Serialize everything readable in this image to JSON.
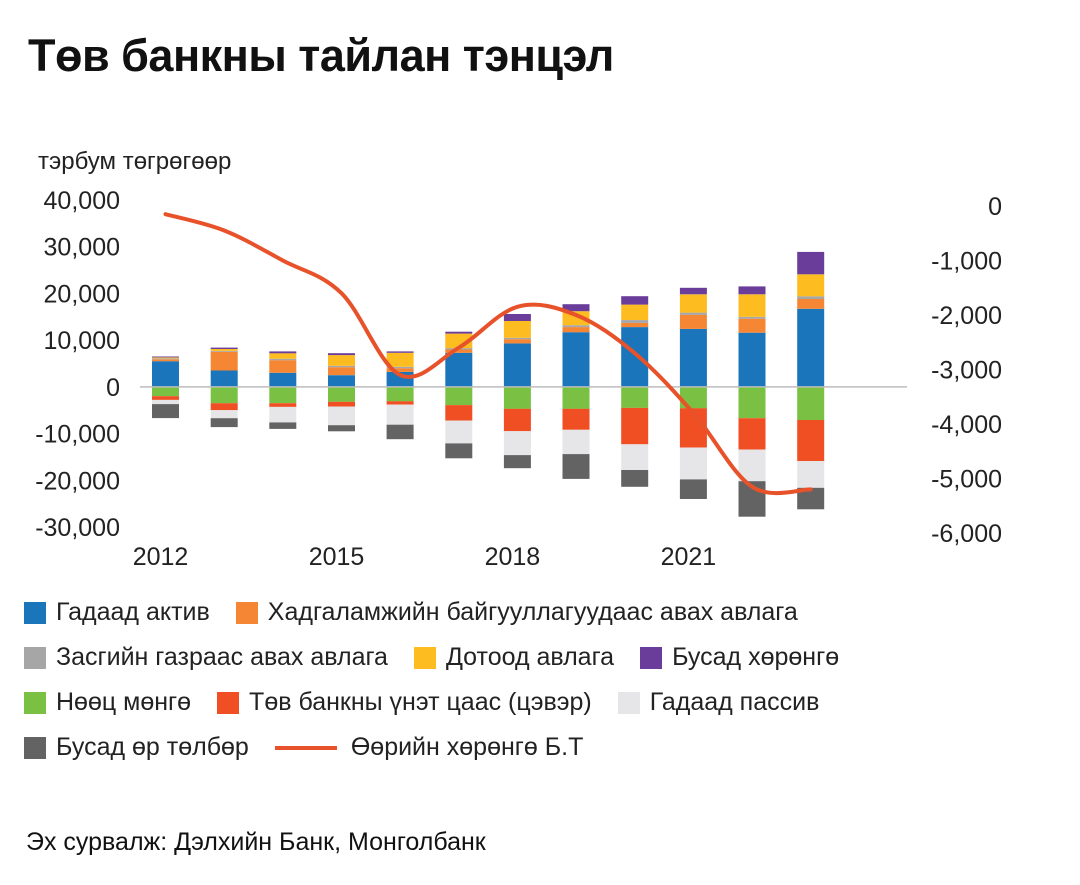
{
  "title": "Төв банкны тайлан тэнцэл",
  "unit_label": "тэрбум төгрөгөөр",
  "source": "Эх сурвалж: Дэлхийн Банк, Монголбанк",
  "chart_data": {
    "type": "bar",
    "stacked": true,
    "categories": [
      "2012",
      "2013",
      "2014",
      "2015",
      "2016",
      "2017",
      "2018",
      "2019",
      "2020",
      "2021",
      "2022",
      "2023"
    ],
    "x_tick_labels": [
      "2012",
      "2015",
      "2018",
      "2021"
    ],
    "y_left": {
      "min": -30000,
      "max": 40000,
      "ticks": [
        40000,
        30000,
        20000,
        10000,
        0,
        -10000,
        -20000,
        -30000
      ],
      "tick_labels": [
        "40,000",
        "30,000",
        "20,000",
        "10,000",
        "0",
        "-10,000",
        "-20,000",
        "-30,000"
      ]
    },
    "y_right": {
      "min": -6000,
      "max": 0,
      "ticks": [
        0,
        -1000,
        -2000,
        -3000,
        -4000,
        -5000,
        -6000
      ],
      "tick_labels": [
        "0",
        "-1,000",
        "-2,000",
        "-3,000",
        "-4,000",
        "-5,000",
        "-6,000"
      ]
    },
    "grid": false,
    "legend_position": "bottom",
    "series": [
      {
        "name": "Гадаад актив",
        "color": "#1b75bb",
        "axis": "left",
        "values": [
          5500,
          3500,
          3000,
          2500,
          3200,
          7300,
          9300,
          11700,
          12800,
          12400,
          11600,
          16700
        ]
      },
      {
        "name": "Хадгаламжийн байгууллагуудаас авах авлага",
        "color": "#f58634",
        "axis": "left",
        "values": [
          400,
          4000,
          2700,
          1700,
          800,
          700,
          900,
          1100,
          900,
          3000,
          3000,
          2100
        ]
      },
      {
        "name": "Засгийн газраас авах авлага",
        "color": "#a6a6a6",
        "axis": "left",
        "values": [
          200,
          200,
          300,
          300,
          300,
          300,
          300,
          400,
          600,
          500,
          400,
          600
        ]
      },
      {
        "name": "Дотоод авлага",
        "color": "#fdbc20",
        "axis": "left",
        "values": [
          200,
          400,
          1200,
          2300,
          3000,
          3100,
          3600,
          3000,
          3300,
          3900,
          4800,
          4700
        ]
      },
      {
        "name": "Бусад хөрөнгө",
        "color": "#6a3d9a",
        "axis": "left",
        "values": [
          200,
          300,
          400,
          400,
          300,
          400,
          1500,
          1500,
          1800,
          1400,
          1700,
          4800
        ]
      },
      {
        "name": "Нөөц мөнгө",
        "color": "#7ac143",
        "axis": "left",
        "values": [
          -2000,
          -3500,
          -3500,
          -3200,
          -3100,
          -3900,
          -4700,
          -4700,
          -4500,
          -4600,
          -6700,
          -7100
        ]
      },
      {
        "name": "Төв банкны үнэт цаас (цэвэр)",
        "color": "#f04e23",
        "axis": "left",
        "values": [
          -800,
          -1500,
          -800,
          -1000,
          -700,
          -3300,
          -4800,
          -4500,
          -7800,
          -8400,
          -6700,
          -8800
        ]
      },
      {
        "name": "Гадаад пассив",
        "color": "#e6e6e8",
        "axis": "left",
        "values": [
          -900,
          -1700,
          -3300,
          -4000,
          -4300,
          -4900,
          -5100,
          -5200,
          -5500,
          -6800,
          -6800,
          -5700
        ]
      },
      {
        "name": "Бусад өр төлбөр",
        "color": "#636363",
        "axis": "left",
        "values": [
          -3000,
          -1900,
          -1400,
          -1300,
          -3100,
          -3200,
          -2800,
          -5300,
          -3600,
          -4200,
          -7600,
          -4600
        ]
      },
      {
        "name": "Өөрийн хөрөнгө Б.Т",
        "color": "#e8522a",
        "axis": "right",
        "type": "line",
        "values": [
          -150,
          -450,
          -1000,
          -1600,
          -3100,
          -2600,
          -1850,
          -2000,
          -2700,
          -3800,
          -5150,
          -5200
        ]
      }
    ]
  }
}
